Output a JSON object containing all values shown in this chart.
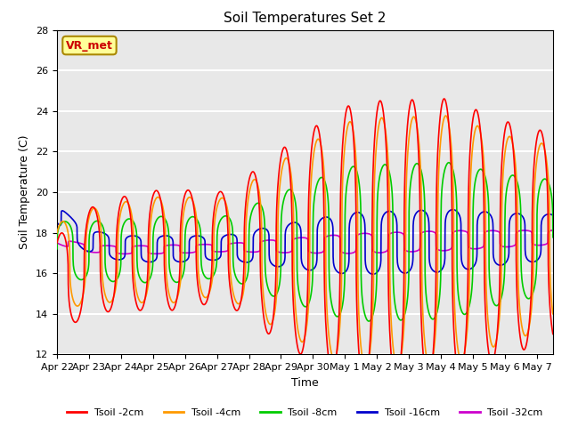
{
  "title": "Soil Temperatures Set 2",
  "xlabel": "Time",
  "ylabel": "Soil Temperature (C)",
  "ylim": [
    12,
    28
  ],
  "background_color": "#e8e8e8",
  "grid_color": "white",
  "colors": {
    "t2cm": "#ff0000",
    "t4cm": "#ff9900",
    "t8cm": "#00cc00",
    "t16cm": "#0000cc",
    "t32cm": "#cc00cc"
  },
  "x_tick_labels": [
    "Apr 22",
    "Apr 23",
    "Apr 24",
    "Apr 25",
    "Apr 26",
    "Apr 27",
    "Apr 28",
    "Apr 29",
    "Apr 30",
    "May 1",
    "May 2",
    "May 3",
    "May 4",
    "May 5",
    "May 6",
    "May 7"
  ],
  "vr_met_label": "VR_met",
  "vr_met_color": "#cc0000",
  "vr_met_bg": "#ffff99",
  "vr_met_border": "#aa8800"
}
